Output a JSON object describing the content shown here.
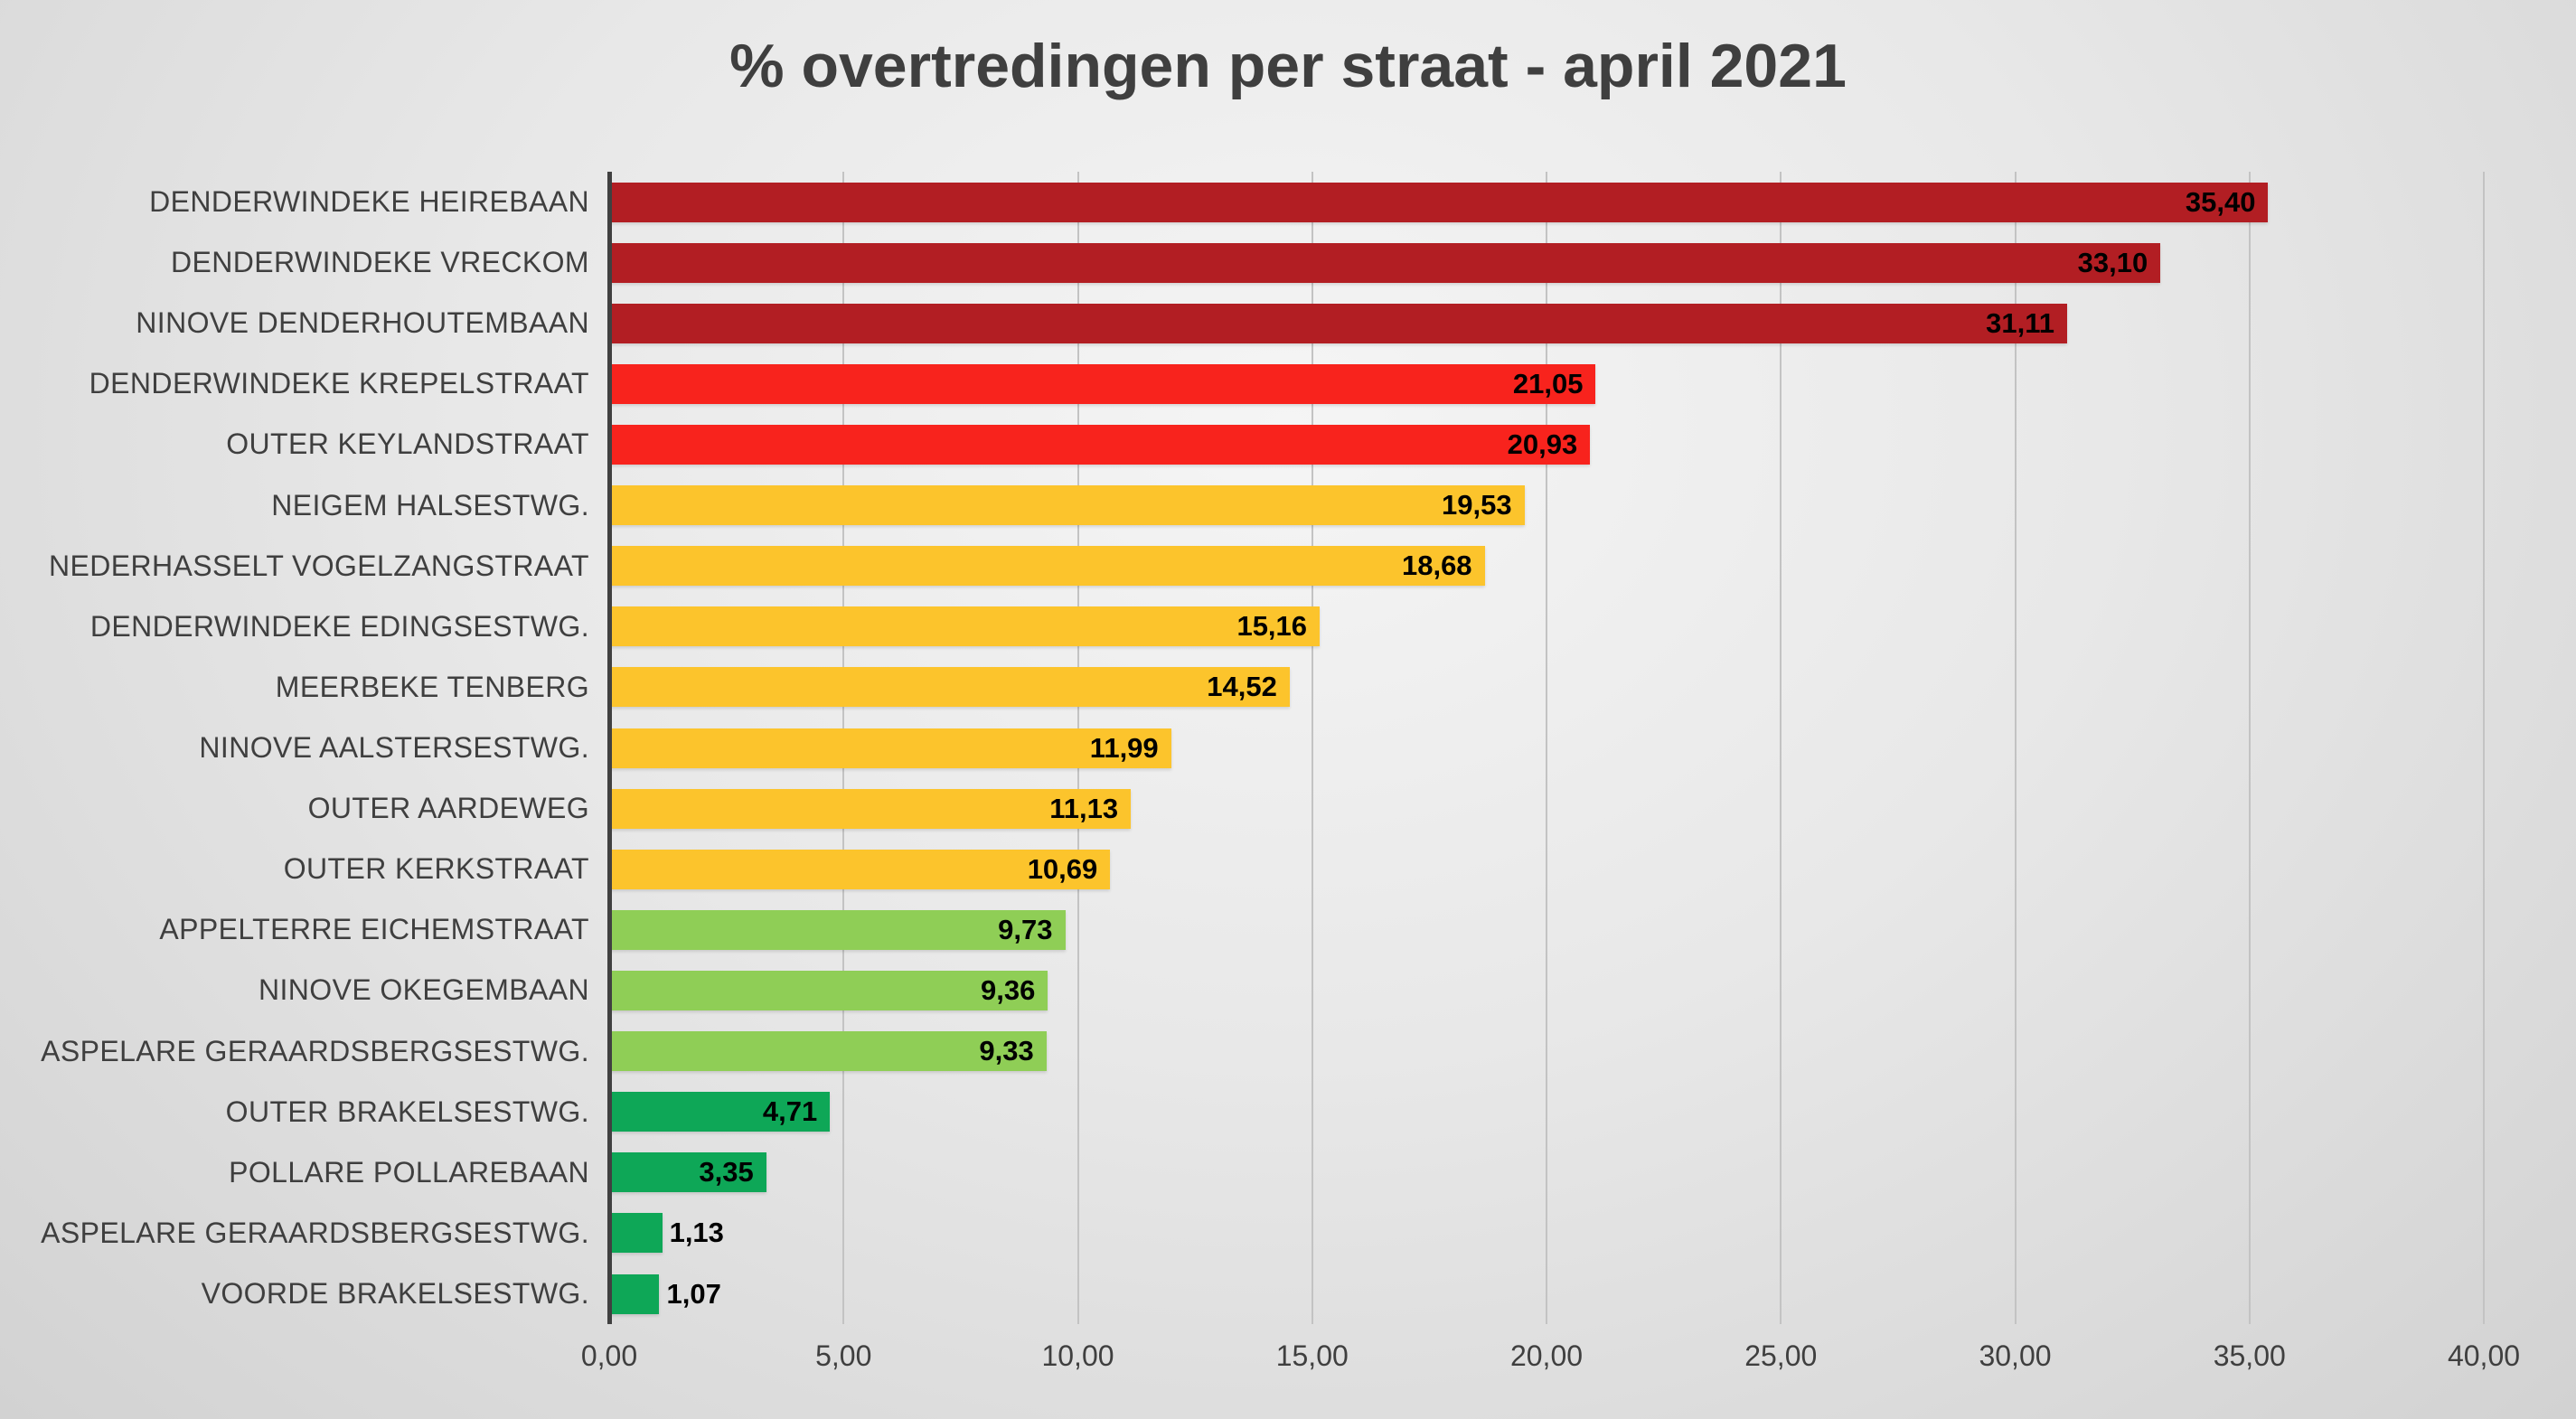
{
  "chart_data": {
    "type": "bar",
    "orientation": "horizontal",
    "title": "% overtredingen per straat - april 2021",
    "xlabel": "",
    "ylabel": "",
    "xlim": [
      0,
      40
    ],
    "x_ticks": [
      "0,00",
      "5,00",
      "10,00",
      "15,00",
      "20,00",
      "25,00",
      "30,00",
      "35,00",
      "40,00"
    ],
    "grid": true,
    "legend": false,
    "bars": [
      {
        "category": "DENDERWINDEKE HEIREBAAN",
        "value": 35.4,
        "label": "35,40",
        "color": "dark_red"
      },
      {
        "category": "DENDERWINDEKE VRECKOM",
        "value": 33.1,
        "label": "33,10",
        "color": "dark_red"
      },
      {
        "category": "NINOVE DENDERHOUTEMBAAN",
        "value": 31.11,
        "label": "31,11",
        "color": "dark_red"
      },
      {
        "category": "DENDERWINDEKE KREPELSTRAAT",
        "value": 21.05,
        "label": "21,05",
        "color": "red"
      },
      {
        "category": "OUTER KEYLANDSTRAAT",
        "value": 20.93,
        "label": "20,93",
        "color": "red"
      },
      {
        "category": "NEIGEM HALSESTWG.",
        "value": 19.53,
        "label": "19,53",
        "color": "amber"
      },
      {
        "category": "NEDERHASSELT VOGELZANGSTRAAT",
        "value": 18.68,
        "label": "18,68",
        "color": "amber"
      },
      {
        "category": "DENDERWINDEKE EDINGSESTWG.",
        "value": 15.16,
        "label": "15,16",
        "color": "amber"
      },
      {
        "category": "MEERBEKE TENBERG",
        "value": 14.52,
        "label": "14,52",
        "color": "amber"
      },
      {
        "category": "NINOVE AALSTERSESTWG.",
        "value": 11.99,
        "label": "11,99",
        "color": "amber"
      },
      {
        "category": "OUTER AARDEWEG",
        "value": 11.13,
        "label": "11,13",
        "color": "amber"
      },
      {
        "category": "OUTER KERKSTRAAT",
        "value": 10.69,
        "label": "10,69",
        "color": "amber"
      },
      {
        "category": "APPELTERRE EICHEMSTRAAT",
        "value": 9.73,
        "label": "9,73",
        "color": "light_green"
      },
      {
        "category": "NINOVE OKEGEMBAAN",
        "value": 9.36,
        "label": "9,36",
        "color": "light_green"
      },
      {
        "category": "ASPELARE GERAARDSBERGSESTWG.",
        "value": 9.33,
        "label": "9,33",
        "color": "light_green"
      },
      {
        "category": "OUTER BRAKELSESTWG.",
        "value": 4.71,
        "label": "4,71",
        "color": "green"
      },
      {
        "category": "POLLARE POLLAREBAAN",
        "value": 3.35,
        "label": "3,35",
        "color": "green"
      },
      {
        "category": "ASPELARE GERAARDSBERGSESTWG.",
        "value": 1.13,
        "label": "1,13",
        "color": "green"
      },
      {
        "category": "VOORDE BRAKELSESTWG.",
        "value": 1.07,
        "label": "1,07",
        "color": "green"
      }
    ]
  },
  "palette": {
    "dark_red": "#B21E23",
    "red": "#F8231D",
    "amber": "#FCC42C",
    "light_green": "#8FCE56",
    "green": "#0EA757",
    "title_text": "#3F3F3F",
    "grid_line": "#C3C3C3",
    "axis_line": "#404040",
    "tick_text": "#3F3F3F",
    "value_text": "#000000"
  }
}
